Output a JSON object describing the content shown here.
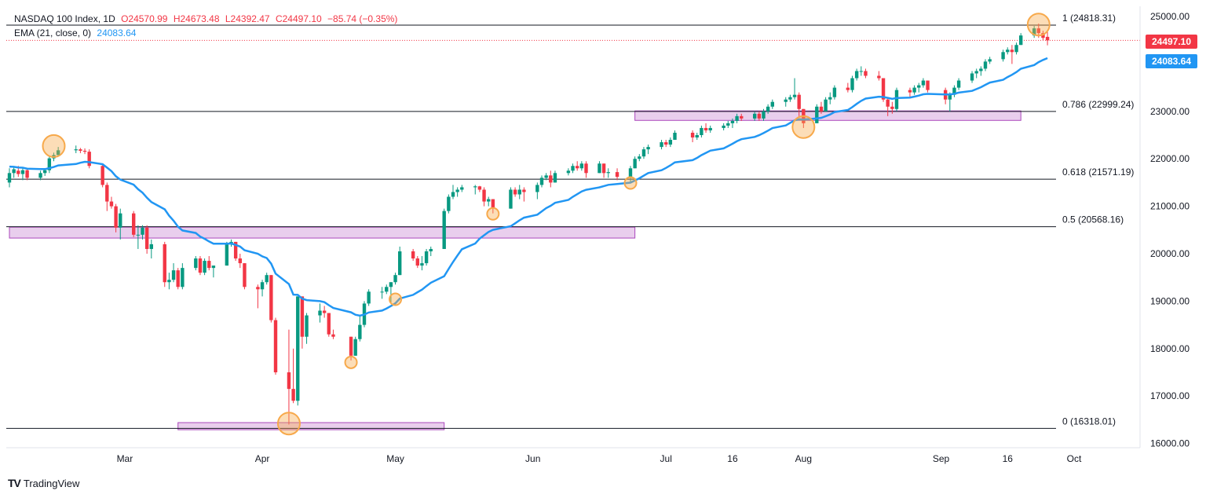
{
  "header": {
    "symbol": "NASDAQ 100 Index, 1D",
    "open": "O24570.99",
    "high": "H24673.48",
    "low": "L24392.47",
    "close": "C24497.10",
    "change": "−85.74 (−0.35%)",
    "ema_label": "EMA (21, close, 0)",
    "ema_value": "24083.64"
  },
  "price_tags": {
    "close": "24497.10",
    "ema": "24083.64"
  },
  "brand": {
    "name": "TradingView",
    "logo": "TV"
  },
  "colors": {
    "up": "#089981",
    "down": "#f23645",
    "ema": "#2196f3",
    "zone": "#e1bee7",
    "marker": "#f7a94b"
  },
  "chart_data": {
    "type": "candlestick",
    "title": "NASDAQ 100 Index, 1D",
    "ylim": [
      15900,
      25200
    ],
    "y_ticks": [
      "25000.00",
      "24000.00",
      "23000.00",
      "22000.00",
      "21000.00",
      "20000.00",
      "19000.00",
      "18000.00",
      "17000.00",
      "16000.00"
    ],
    "x_ticks": [
      "Mar",
      "Apr",
      "May",
      "Jun",
      "Jul",
      "16",
      "Aug",
      "Sep",
      "16",
      "Oct"
    ],
    "fib_levels": [
      {
        "label": "1 (24818.31)",
        "value": 24818.31
      },
      {
        "label": "0.786 (22999.24)",
        "value": 22999.24
      },
      {
        "label": "0.618 (21571.19)",
        "value": 21571.19
      },
      {
        "label": "0.5 (20568.16)",
        "value": 20568.16
      },
      {
        "label": "0 (16318.01)",
        "value": 16318.01
      }
    ],
    "zones": [
      {
        "from": "2025-02-03",
        "to": "2025-06-24",
        "low": 20330,
        "high": 20560
      },
      {
        "from": "2025-03-13",
        "to": "2025-05-12",
        "low": 16290,
        "high": 16440
      },
      {
        "from": "2025-06-24",
        "to": "2025-09-19",
        "low": 22810,
        "high": 23010
      }
    ],
    "markers": [
      {
        "date": "2025-02-13",
        "value": 22270,
        "size": "large"
      },
      {
        "date": "2025-04-07",
        "value": 16420,
        "size": "large"
      },
      {
        "date": "2025-04-21",
        "value": 17710,
        "size": "small"
      },
      {
        "date": "2025-05-01",
        "value": 19040,
        "size": "small"
      },
      {
        "date": "2025-05-23",
        "value": 20840,
        "size": "small"
      },
      {
        "date": "2025-06-23",
        "value": 21490,
        "size": "small"
      },
      {
        "date": "2025-08-01",
        "value": 22670,
        "size": "large"
      },
      {
        "date": "2025-09-23",
        "value": 24830,
        "size": "large"
      }
    ],
    "candles": [
      [
        "2025-02-03",
        21500,
        21800,
        21400,
        21700
      ],
      [
        "2025-02-04",
        21700,
        21830,
        21600,
        21780
      ],
      [
        "2025-02-05",
        21750,
        21850,
        21620,
        21680
      ],
      [
        "2025-02-06",
        21680,
        21800,
        21550,
        21760
      ],
      [
        "2025-02-07",
        21760,
        21800,
        21550,
        21600
      ],
      [
        "2025-02-10",
        21600,
        21750,
        21550,
        21700
      ],
      [
        "2025-02-11",
        21700,
        21800,
        21640,
        21760
      ],
      [
        "2025-02-12",
        21760,
        22050,
        21700,
        22010
      ],
      [
        "2025-02-13",
        22010,
        22130,
        21950,
        22080
      ],
      [
        "2025-02-14",
        22080,
        22250,
        22080,
        22180
      ],
      [
        "2025-02-18",
        22180,
        22280,
        22120,
        22200
      ],
      [
        "2025-02-19",
        22200,
        22230,
        22120,
        22170
      ],
      [
        "2025-02-20",
        22170,
        22220,
        22100,
        22150
      ],
      [
        "2025-02-21",
        22150,
        22200,
        21800,
        21850
      ],
      [
        "2025-02-24",
        21850,
        21900,
        21400,
        21450
      ],
      [
        "2025-02-25",
        21450,
        21500,
        20900,
        21100
      ],
      [
        "2025-02-26",
        21100,
        21200,
        20950,
        21000
      ],
      [
        "2025-02-27",
        21000,
        21050,
        20450,
        20550
      ],
      [
        "2025-02-28",
        20550,
        20950,
        20300,
        20850
      ],
      [
        "2025-03-03",
        20850,
        20900,
        20350,
        20400
      ],
      [
        "2025-03-04",
        20400,
        20600,
        20100,
        20400
      ],
      [
        "2025-03-05",
        20400,
        20600,
        20300,
        20550
      ],
      [
        "2025-03-06",
        20550,
        20600,
        20000,
        20100
      ],
      [
        "2025-03-07",
        20100,
        20300,
        19900,
        20200
      ],
      [
        "2025-03-10",
        20200,
        20250,
        19300,
        19400
      ],
      [
        "2025-03-11",
        19400,
        19600,
        19250,
        19450
      ],
      [
        "2025-03-12",
        19450,
        19800,
        19400,
        19650
      ],
      [
        "2025-03-13",
        19650,
        19700,
        19250,
        19300
      ],
      [
        "2025-03-14",
        19300,
        19800,
        19250,
        19700
      ],
      [
        "2025-03-17",
        19700,
        19950,
        19650,
        19900
      ],
      [
        "2025-03-18",
        19900,
        19950,
        19550,
        19600
      ],
      [
        "2025-03-19",
        19600,
        19900,
        19550,
        19850
      ],
      [
        "2025-03-20",
        19850,
        19950,
        19650,
        19700
      ],
      [
        "2025-03-21",
        19700,
        19750,
        19500,
        19750
      ],
      [
        "2025-03-24",
        19750,
        20250,
        19750,
        20200
      ],
      [
        "2025-03-25",
        20200,
        20300,
        20150,
        20250
      ],
      [
        "2025-03-26",
        20250,
        20250,
        19850,
        19900
      ],
      [
        "2025-03-27",
        19900,
        20000,
        19700,
        19800
      ],
      [
        "2025-03-28",
        19800,
        19800,
        19250,
        19300
      ],
      [
        "2025-03-31",
        19300,
        19350,
        18850,
        19250
      ],
      [
        "2025-04-01",
        19250,
        19450,
        19100,
        19400
      ],
      [
        "2025-04-02",
        19400,
        19600,
        19350,
        19550
      ],
      [
        "2025-04-03",
        19550,
        19550,
        18550,
        18600
      ],
      [
        "2025-04-04",
        18600,
        18650,
        17450,
        17500
      ],
      [
        "2025-04-07",
        17500,
        18400,
        16400,
        17150
      ],
      [
        "2025-04-08",
        17150,
        18000,
        16850,
        16900
      ],
      [
        "2025-04-09",
        16900,
        19100,
        16800,
        19100
      ],
      [
        "2025-04-10",
        19100,
        19100,
        18000,
        18250
      ],
      [
        "2025-04-11",
        18250,
        18750,
        18100,
        18700
      ],
      [
        "2025-04-14",
        18700,
        18950,
        18550,
        18800
      ],
      [
        "2025-04-15",
        18800,
        18900,
        18650,
        18750
      ],
      [
        "2025-04-16",
        18750,
        18750,
        18250,
        18300
      ],
      [
        "2025-04-17",
        18300,
        18400,
        18200,
        18250
      ],
      [
        "2025-04-21",
        18250,
        18250,
        17750,
        17850
      ],
      [
        "2025-04-22",
        17850,
        18250,
        17850,
        18200
      ],
      [
        "2025-04-23",
        18200,
        18700,
        18150,
        18500
      ],
      [
        "2025-04-24",
        18500,
        19000,
        18450,
        18950
      ],
      [
        "2025-04-25",
        18950,
        19250,
        18900,
        19200
      ],
      [
        "2025-04-28",
        19200,
        19300,
        19050,
        19200
      ],
      [
        "2025-04-29",
        19200,
        19350,
        19150,
        19300
      ],
      [
        "2025-04-30",
        19300,
        19400,
        18950,
        19400
      ],
      [
        "2025-05-01",
        19400,
        19600,
        19350,
        19550
      ],
      [
        "2025-05-02",
        19550,
        20150,
        19550,
        20050
      ],
      [
        "2025-05-05",
        20050,
        20100,
        19850,
        19900
      ],
      [
        "2025-05-06",
        19900,
        19950,
        19700,
        19750
      ],
      [
        "2025-05-07",
        19750,
        19950,
        19650,
        19800
      ],
      [
        "2025-05-08",
        19800,
        20100,
        19750,
        20050
      ],
      [
        "2025-05-09",
        20050,
        20150,
        19950,
        20100
      ],
      [
        "2025-05-12",
        20100,
        20950,
        20100,
        20900
      ],
      [
        "2025-05-13",
        20900,
        21250,
        20850,
        21200
      ],
      [
        "2025-05-14",
        21200,
        21450,
        21150,
        21300
      ],
      [
        "2025-05-15",
        21300,
        21400,
        21200,
        21350
      ],
      [
        "2025-05-16",
        21350,
        21450,
        21300,
        21400
      ],
      [
        "2025-05-19",
        21400,
        21450,
        21250,
        21420
      ],
      [
        "2025-05-20",
        21420,
        21430,
        21300,
        21350
      ],
      [
        "2025-05-21",
        21350,
        21400,
        21000,
        21100
      ],
      [
        "2025-05-22",
        21100,
        21200,
        21000,
        21150
      ],
      [
        "2025-05-23",
        21150,
        21150,
        20850,
        20950
      ],
      [
        "2025-05-27",
        20950,
        21400,
        20950,
        21350
      ],
      [
        "2025-05-28",
        21350,
        21400,
        21200,
        21250
      ],
      [
        "2025-05-29",
        21250,
        21450,
        21150,
        21350
      ],
      [
        "2025-05-30",
        21350,
        21400,
        21100,
        21300
      ],
      [
        "2025-06-02",
        21300,
        21500,
        21150,
        21450
      ],
      [
        "2025-06-03",
        21450,
        21650,
        21400,
        21600
      ],
      [
        "2025-06-04",
        21600,
        21700,
        21550,
        21650
      ],
      [
        "2025-06-05",
        21650,
        21750,
        21400,
        21500
      ],
      [
        "2025-06-06",
        21500,
        21750,
        21500,
        21700
      ],
      [
        "2025-06-09",
        21700,
        21800,
        21650,
        21750
      ],
      [
        "2025-06-10",
        21750,
        21900,
        21700,
        21850
      ],
      [
        "2025-06-11",
        21850,
        21950,
        21750,
        21800
      ],
      [
        "2025-06-12",
        21800,
        21950,
        21750,
        21900
      ],
      [
        "2025-06-13",
        21900,
        21950,
        21600,
        21700
      ],
      [
        "2025-06-16",
        21700,
        21950,
        21700,
        21900
      ],
      [
        "2025-06-17",
        21900,
        21900,
        21600,
        21700
      ],
      [
        "2025-06-18",
        21700,
        21800,
        21600,
        21720
      ],
      [
        "2025-06-20",
        21720,
        21800,
        21550,
        21620
      ],
      [
        "2025-06-23",
        21620,
        21850,
        21500,
        21800
      ],
      [
        "2025-06-24",
        21800,
        22050,
        21800,
        22000
      ],
      [
        "2025-06-25",
        22000,
        22100,
        21950,
        22050
      ],
      [
        "2025-06-26",
        22050,
        22250,
        22000,
        22200
      ],
      [
        "2025-06-27",
        22200,
        22300,
        22100,
        22250
      ],
      [
        "2025-06-30",
        22250,
        22400,
        22200,
        22350
      ],
      [
        "2025-07-01",
        22350,
        22400,
        22250,
        22300
      ],
      [
        "2025-07-02",
        22300,
        22450,
        22250,
        22400
      ],
      [
        "2025-07-03",
        22400,
        22600,
        22400,
        22550
      ],
      [
        "2025-07-07",
        22550,
        22600,
        22350,
        22450
      ],
      [
        "2025-07-08",
        22450,
        22550,
        22400,
        22500
      ],
      [
        "2025-07-09",
        22500,
        22700,
        22450,
        22650
      ],
      [
        "2025-07-10",
        22650,
        22750,
        22550,
        22600
      ],
      [
        "2025-07-11",
        22600,
        22700,
        22550,
        22650
      ],
      [
        "2025-07-14",
        22650,
        22750,
        22600,
        22700
      ],
      [
        "2025-07-15",
        22700,
        22800,
        22650,
        22750
      ],
      [
        "2025-07-16",
        22750,
        22850,
        22650,
        22800
      ],
      [
        "2025-07-17",
        22800,
        22950,
        22750,
        22900
      ],
      [
        "2025-07-18",
        22900,
        22950,
        22800,
        22850
      ],
      [
        "2025-07-21",
        22850,
        23000,
        22800,
        22950
      ],
      [
        "2025-07-22",
        22950,
        23000,
        22800,
        22850
      ],
      [
        "2025-07-23",
        22850,
        23050,
        22800,
        23000
      ],
      [
        "2025-07-24",
        23000,
        23150,
        22950,
        23100
      ],
      [
        "2025-07-25",
        23100,
        23250,
        23050,
        23200
      ],
      [
        "2025-07-28",
        23200,
        23300,
        23100,
        23250
      ],
      [
        "2025-07-29",
        23250,
        23350,
        23200,
        23300
      ],
      [
        "2025-07-30",
        23300,
        23700,
        23250,
        23350
      ],
      [
        "2025-07-31",
        23350,
        23400,
        22900,
        23050
      ],
      [
        "2025-08-01",
        23050,
        23050,
        22650,
        22750
      ],
      [
        "2025-08-04",
        22750,
        23150,
        22750,
        23100
      ],
      [
        "2025-08-05",
        23100,
        23200,
        22950,
        23000
      ],
      [
        "2025-08-06",
        23000,
        23300,
        23000,
        23250
      ],
      [
        "2025-08-07",
        23250,
        23400,
        23150,
        23300
      ],
      [
        "2025-08-08",
        23300,
        23550,
        23250,
        23500
      ],
      [
        "2025-08-11",
        23500,
        23600,
        23400,
        23450
      ],
      [
        "2025-08-12",
        23450,
        23750,
        23400,
        23700
      ],
      [
        "2025-08-13",
        23700,
        23900,
        23650,
        23850
      ],
      [
        "2025-08-14",
        23850,
        23950,
        23750,
        23850
      ],
      [
        "2025-08-15",
        23850,
        23900,
        23700,
        23750
      ],
      [
        "2025-08-18",
        23750,
        23850,
        23650,
        23700
      ],
      [
        "2025-08-19",
        23700,
        23700,
        23200,
        23250
      ],
      [
        "2025-08-20",
        23250,
        23300,
        22900,
        23100
      ],
      [
        "2025-08-21",
        23100,
        23200,
        22950,
        23050
      ],
      [
        "2025-08-22",
        23050,
        23500,
        23000,
        23450
      ],
      [
        "2025-08-25",
        23450,
        23500,
        23300,
        23400
      ],
      [
        "2025-08-26",
        23400,
        23550,
        23350,
        23500
      ],
      [
        "2025-08-27",
        23500,
        23600,
        23400,
        23550
      ],
      [
        "2025-08-28",
        23550,
        23700,
        23500,
        23650
      ],
      [
        "2025-08-29",
        23650,
        23650,
        23400,
        23450
      ],
      [
        "2025-09-02",
        23450,
        23500,
        23150,
        23250
      ],
      [
        "2025-09-03",
        23250,
        23400,
        23000,
        23350
      ],
      [
        "2025-09-04",
        23350,
        23550,
        23300,
        23500
      ],
      [
        "2025-09-05",
        23500,
        23700,
        23450,
        23650
      ],
      [
        "2025-09-08",
        23650,
        23850,
        23600,
        23800
      ],
      [
        "2025-09-09",
        23800,
        23900,
        23700,
        23850
      ],
      [
        "2025-09-10",
        23850,
        23950,
        23750,
        23900
      ],
      [
        "2025-09-11",
        23900,
        24100,
        23850,
        24050
      ],
      [
        "2025-09-12",
        24050,
        24150,
        24000,
        24100
      ],
      [
        "2025-09-15",
        24100,
        24300,
        24050,
        24250
      ],
      [
        "2025-09-16",
        24250,
        24350,
        24200,
        24300
      ],
      [
        "2025-09-17",
        24300,
        24400,
        24000,
        24250
      ],
      [
        "2025-09-18",
        24250,
        24450,
        24200,
        24400
      ],
      [
        "2025-09-19",
        24400,
        24650,
        24400,
        24600
      ],
      [
        "2025-09-22",
        24600,
        24800,
        24550,
        24750
      ],
      [
        "2025-09-23",
        24750,
        24850,
        24550,
        24650
      ],
      [
        "2025-09-24",
        24650,
        24700,
        24500,
        24550
      ],
      [
        "2025-09-25",
        24570.99,
        24673.48,
        24392.47,
        24497.1
      ]
    ]
  }
}
